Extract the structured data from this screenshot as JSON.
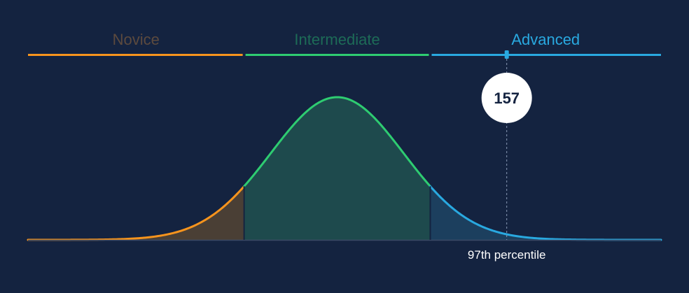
{
  "chart_data": {
    "type": "area",
    "title": "",
    "xlabel": "",
    "ylabel": "",
    "grid": false,
    "x_domain": [
      -4.65,
      4.87
    ],
    "cutoffs": [
      -1.4,
      1.4
    ],
    "bands": [
      {
        "name": "Novice",
        "color": "#f7941d",
        "text_color": "#5c4a3e",
        "fill": "#4a3f35"
      },
      {
        "name": "Intermediate",
        "color": "#2ecc71",
        "text_color": "#1d6b57",
        "fill": "#1e4a4d"
      },
      {
        "name": "Advanced",
        "color": "#29a9e0",
        "text_color": "#29a9e0",
        "fill": "#1c3f5e"
      }
    ],
    "marker": {
      "score": "157",
      "z": 2.55,
      "percentile_label": "97th percentile"
    }
  }
}
